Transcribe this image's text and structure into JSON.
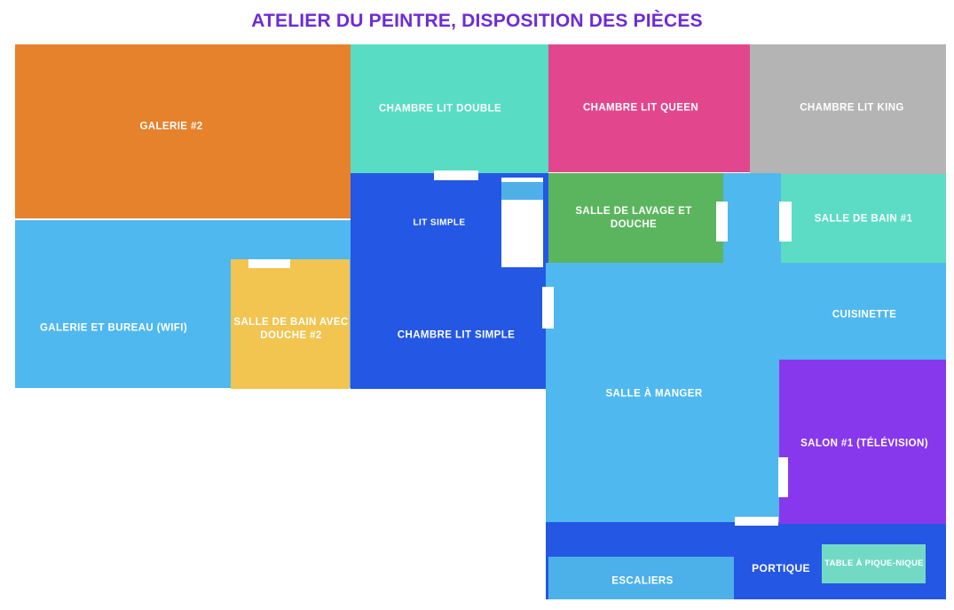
{
  "title": "ATELIER DU PEINTRE, DISPOSITION DES PIÈCES",
  "palette": {
    "title_text": "#6e2bd6",
    "background": "#ffffff",
    "door": "#ffffff",
    "hallway": "#4fb8ef",
    "bed_mattress": "#ffffff",
    "bed_pillow": "#4fb0e8"
  },
  "rooms": [
    {
      "id": "galerie-2",
      "label": "GALERIE #2",
      "color": "#e6812c"
    },
    {
      "id": "chambre-lit-double",
      "label": "CHAMBRE LIT DOUBLE",
      "color": "#58dcc3"
    },
    {
      "id": "chambre-lit-queen",
      "label": "CHAMBRE LIT QUEEN",
      "color": "#e2478e"
    },
    {
      "id": "chambre-lit-king",
      "label": "CHAMBRE LIT KING",
      "color": "#b4b4b4"
    },
    {
      "id": "chambre-lit-simple",
      "label": "CHAMBRE LIT SIMPLE",
      "sublabel": "LIT SIMPLE",
      "color": "#2457e4"
    },
    {
      "id": "galerie-et-bureau",
      "label": "GALERIE ET BUREAU (WIFI)",
      "color": "#4fb8ef"
    },
    {
      "id": "salle-bain-douche-2",
      "label": "SALLE DE BAIN AVEC DOUCHE #2",
      "color": "#f2c450"
    },
    {
      "id": "salle-lavage-douche",
      "label": "SALLE DE LAVAGE ET DOUCHE",
      "color": "#5bb55f"
    },
    {
      "id": "salle-de-bain-1",
      "label": "SALLE DE BAIN #1",
      "color": "#5cdcc5"
    },
    {
      "id": "cuisinette",
      "label": "CUISINETTE",
      "color": "#4fb8ef"
    },
    {
      "id": "salle-a-manger",
      "label": "SALLE À MANGER",
      "color": "#4fb8ef"
    },
    {
      "id": "salon-1",
      "label": "SALON #1 (TÉLÉVISION)",
      "color": "#8838ec"
    },
    {
      "id": "portique",
      "label": "PORTIQUE",
      "color": "#2457e4"
    },
    {
      "id": "escaliers",
      "label": "ESCALIERS",
      "color": "#4db1e9"
    },
    {
      "id": "table-pique-nique",
      "label": "TABLE À PIQUE-NIQUE",
      "color": "#72d9c5"
    }
  ]
}
